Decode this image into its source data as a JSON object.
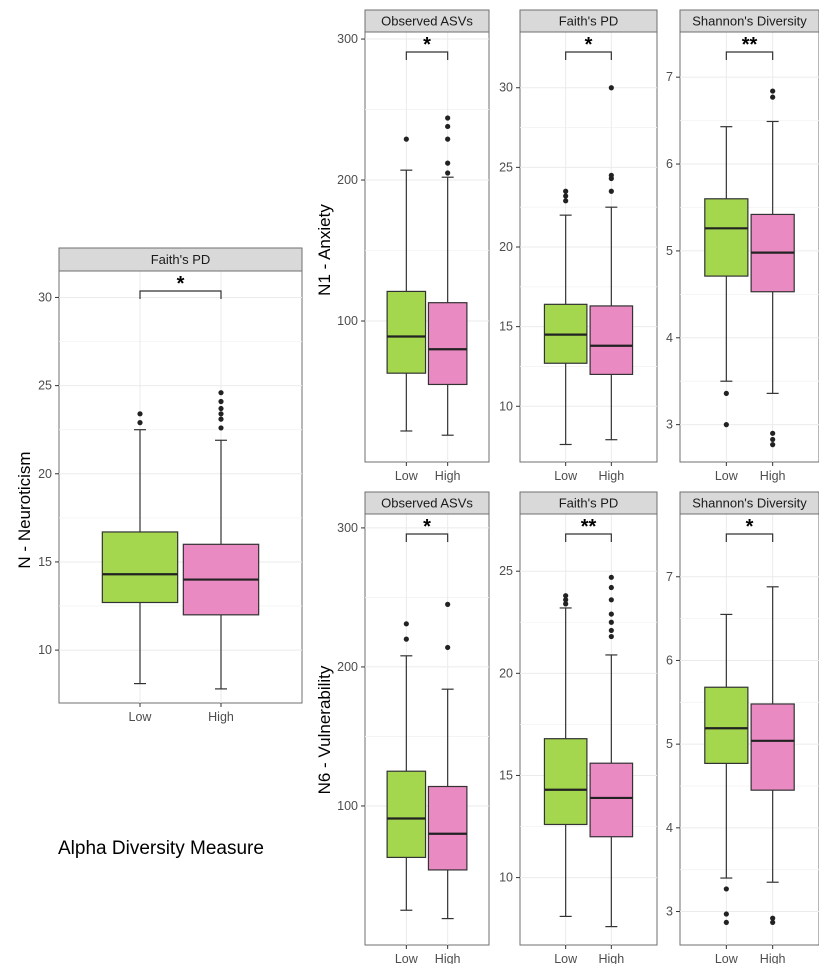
{
  "caption": "Alpha Diversity Measure",
  "colors": {
    "low": "#a4d64e",
    "high": "#e98ac2",
    "strip": "#d9d9d9",
    "grid": "#ebebeb"
  },
  "chart_data": [
    {
      "type": "box",
      "strip": "Faith's PD",
      "ylabel": "N - Neuroticism",
      "categories": [
        "Low",
        "High"
      ],
      "ylim": [
        7,
        31.5
      ],
      "yticks": [
        10,
        15,
        20,
        25,
        30
      ],
      "series": [
        {
          "category": "Low",
          "whisker_low": 8.1,
          "q1": 12.7,
          "median": 14.3,
          "q3": 16.7,
          "whisker_high": 22.5,
          "outliers": [
            22.9,
            23.4
          ]
        },
        {
          "category": "High",
          "whisker_low": 7.8,
          "q1": 12.0,
          "median": 14.0,
          "q3": 16.0,
          "whisker_high": 21.9,
          "outliers": [
            22.6,
            23.1,
            23.4,
            23.7,
            24.1,
            24.6
          ]
        }
      ],
      "significance": "*"
    },
    {
      "type": "box",
      "strip": "Observed ASVs",
      "ylabel": "N1 - Anxiety",
      "categories": [
        "Low",
        "High"
      ],
      "ylim": [
        0,
        305
      ],
      "yticks": [
        100,
        200,
        300
      ],
      "series": [
        {
          "category": "Low",
          "whisker_low": 22,
          "q1": 63,
          "median": 89,
          "q3": 121,
          "whisker_high": 207,
          "outliers": [
            229
          ]
        },
        {
          "category": "High",
          "whisker_low": 19,
          "q1": 55,
          "median": 80,
          "q3": 113,
          "whisker_high": 202,
          "outliers": [
            205,
            212,
            229,
            238,
            244
          ]
        }
      ],
      "significance": "*"
    },
    {
      "type": "box",
      "strip": "Faith's PD",
      "ylabel": "",
      "categories": [
        "Low",
        "High"
      ],
      "ylim": [
        6.5,
        33.5
      ],
      "yticks": [
        10,
        15,
        20,
        25,
        30
      ],
      "series": [
        {
          "category": "Low",
          "whisker_low": 7.6,
          "q1": 12.7,
          "median": 14.5,
          "q3": 16.4,
          "whisker_high": 22.0,
          "outliers": [
            22.9,
            23.2,
            23.5
          ]
        },
        {
          "category": "High",
          "whisker_low": 7.9,
          "q1": 12.0,
          "median": 13.8,
          "q3": 16.3,
          "whisker_high": 22.5,
          "outliers": [
            23.5,
            24.3,
            24.5,
            30.0
          ]
        }
      ],
      "significance": "*"
    },
    {
      "type": "box",
      "strip": "Shannon's Diversity",
      "ylabel": "",
      "categories": [
        "Low",
        "High"
      ],
      "ylim": [
        2.57,
        7.52
      ],
      "yticks": [
        3,
        4,
        5,
        6,
        7
      ],
      "series": [
        {
          "category": "Low",
          "whisker_low": 3.5,
          "q1": 4.71,
          "median": 5.26,
          "q3": 5.6,
          "whisker_high": 6.43,
          "outliers": [
            3.0,
            3.36
          ]
        },
        {
          "category": "High",
          "whisker_low": 3.36,
          "q1": 4.53,
          "median": 4.98,
          "q3": 5.42,
          "whisker_high": 6.49,
          "outliers": [
            2.77,
            2.83,
            2.9,
            6.77,
            6.84
          ]
        }
      ],
      "significance": "**"
    },
    {
      "type": "box",
      "strip": "Observed ASVs",
      "ylabel": "N6 - Vulnerability",
      "categories": [
        "Low",
        "High"
      ],
      "ylim": [
        0,
        310
      ],
      "yticks": [
        100,
        200,
        300
      ],
      "series": [
        {
          "category": "Low",
          "whisker_low": 25,
          "q1": 63,
          "median": 91,
          "q3": 125,
          "whisker_high": 208,
          "outliers": [
            220,
            231
          ]
        },
        {
          "category": "High",
          "whisker_low": 19,
          "q1": 54,
          "median": 80,
          "q3": 114,
          "whisker_high": 184,
          "outliers": [
            214,
            245
          ]
        }
      ],
      "significance": "*"
    },
    {
      "type": "box",
      "strip": "Faith's PD",
      "ylabel": "",
      "categories": [
        "Low",
        "High"
      ],
      "ylim": [
        6.7,
        27.8
      ],
      "yticks": [
        10,
        15,
        20,
        25
      ],
      "series": [
        {
          "category": "Low",
          "whisker_low": 8.1,
          "q1": 12.6,
          "median": 14.3,
          "q3": 16.8,
          "whisker_high": 23.2,
          "outliers": [
            23.4,
            23.6,
            23.8
          ]
        },
        {
          "category": "High",
          "whisker_low": 7.6,
          "q1": 12.0,
          "median": 13.9,
          "q3": 15.6,
          "whisker_high": 20.9,
          "outliers": [
            21.8,
            22.1,
            22.5,
            22.9,
            23.6,
            24.2,
            24.7
          ]
        }
      ],
      "significance": "**"
    },
    {
      "type": "box",
      "strip": "Shannon's Diversity",
      "ylabel": "",
      "categories": [
        "Low",
        "High"
      ],
      "ylim": [
        2.6,
        7.75
      ],
      "yticks": [
        3,
        4,
        5,
        6,
        7
      ],
      "series": [
        {
          "category": "Low",
          "whisker_low": 3.4,
          "q1": 4.77,
          "median": 5.19,
          "q3": 5.68,
          "whisker_high": 6.55,
          "outliers": [
            2.87,
            2.97,
            3.27
          ]
        },
        {
          "category": "High",
          "whisker_low": 3.35,
          "q1": 4.45,
          "median": 5.04,
          "q3": 5.48,
          "whisker_high": 6.88,
          "outliers": [
            2.87,
            2.92
          ]
        }
      ],
      "significance": "*"
    }
  ]
}
